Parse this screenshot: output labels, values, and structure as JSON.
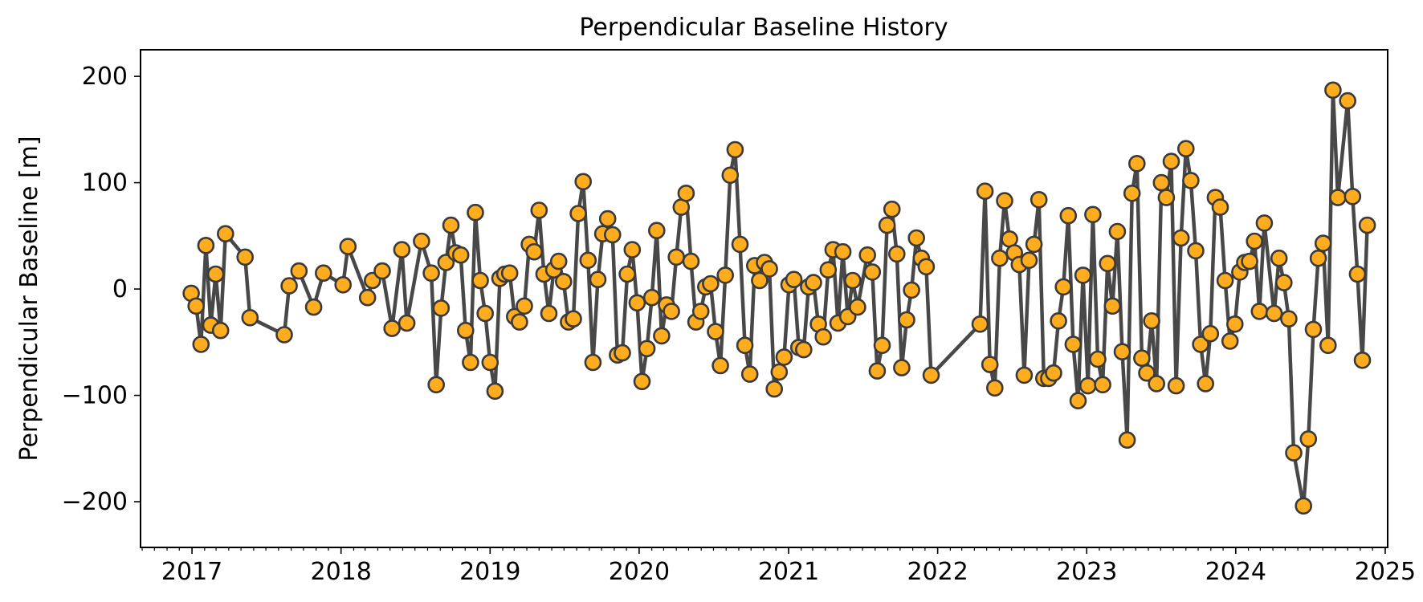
{
  "chart_data": {
    "type": "scatter",
    "title": "Perpendicular Baseline History",
    "xlabel": "",
    "ylabel": "Perpendicular Baseline [m]",
    "xlim": [
      "2016-08-28",
      "2025-01-07"
    ],
    "ylim": [
      -243,
      225
    ],
    "x_ticks": [
      "2017",
      "2018",
      "2019",
      "2020",
      "2021",
      "2022",
      "2023",
      "2024",
      "2025"
    ],
    "y_ticks": [
      200,
      100,
      0,
      -100,
      -200
    ],
    "y_tick_labels": [
      "200",
      "100",
      "0",
      "−100",
      "−200"
    ],
    "grid": false,
    "legend": false,
    "colors": {
      "marker_fill": "#ffad1f",
      "marker_edge": "#3a3a3a",
      "line": "#484848"
    },
    "series": [
      {
        "points": [
          [
            "2016-12-30",
            -4
          ],
          [
            "2017-01-11",
            -16
          ],
          [
            "2017-01-23",
            -52
          ],
          [
            "2017-02-04",
            41
          ],
          [
            "2017-02-16",
            -34
          ],
          [
            "2017-02-28",
            14
          ],
          [
            "2017-03-12",
            -39
          ],
          [
            "2017-03-24",
            52
          ],
          [
            "2017-05-11",
            30
          ],
          [
            "2017-05-23",
            -27
          ],
          [
            "2017-08-15",
            -43
          ],
          [
            "2017-08-27",
            3
          ],
          [
            "2017-09-20",
            17
          ],
          [
            "2017-10-26",
            -17
          ],
          [
            "2017-11-19",
            15
          ],
          [
            "2018-01-06",
            4
          ],
          [
            "2018-01-18",
            40
          ],
          [
            "2018-03-07",
            -8
          ],
          [
            "2018-03-19",
            8
          ],
          [
            "2018-04-12",
            17
          ],
          [
            "2018-05-06",
            -37
          ],
          [
            "2018-05-30",
            37
          ],
          [
            "2018-06-11",
            -32
          ],
          [
            "2018-07-17",
            45
          ],
          [
            "2018-08-10",
            15
          ],
          [
            "2018-08-22",
            -90
          ],
          [
            "2018-09-03",
            -18
          ],
          [
            "2018-09-15",
            25
          ],
          [
            "2018-09-27",
            60
          ],
          [
            "2018-10-09",
            34
          ],
          [
            "2018-10-21",
            32
          ],
          [
            "2018-11-02",
            -39
          ],
          [
            "2018-11-14",
            -69
          ],
          [
            "2018-11-26",
            72
          ],
          [
            "2018-12-08",
            8
          ],
          [
            "2018-12-20",
            -23
          ],
          [
            "2019-01-01",
            -69
          ],
          [
            "2019-01-13",
            -96
          ],
          [
            "2019-01-25",
            10
          ],
          [
            "2019-02-06",
            14
          ],
          [
            "2019-02-18",
            15
          ],
          [
            "2019-03-02",
            -26
          ],
          [
            "2019-03-14",
            -31
          ],
          [
            "2019-03-26",
            -16
          ],
          [
            "2019-04-07",
            42
          ],
          [
            "2019-04-19",
            35
          ],
          [
            "2019-05-01",
            74
          ],
          [
            "2019-05-13",
            14
          ],
          [
            "2019-05-25",
            -23
          ],
          [
            "2019-06-06",
            18
          ],
          [
            "2019-06-18",
            26
          ],
          [
            "2019-06-30",
            7
          ],
          [
            "2019-07-12",
            -31
          ],
          [
            "2019-07-24",
            -28
          ],
          [
            "2019-08-05",
            71
          ],
          [
            "2019-08-17",
            101
          ],
          [
            "2019-08-29",
            27
          ],
          [
            "2019-09-10",
            -69
          ],
          [
            "2019-09-22",
            9
          ],
          [
            "2019-10-04",
            52
          ],
          [
            "2019-10-16",
            66
          ],
          [
            "2019-10-28",
            51
          ],
          [
            "2019-11-09",
            -62
          ],
          [
            "2019-11-21",
            -60
          ],
          [
            "2019-12-03",
            14
          ],
          [
            "2019-12-15",
            37
          ],
          [
            "2019-12-27",
            -13
          ],
          [
            "2020-01-08",
            -87
          ],
          [
            "2020-01-20",
            -56
          ],
          [
            "2020-02-01",
            -8
          ],
          [
            "2020-02-13",
            55
          ],
          [
            "2020-02-25",
            -44
          ],
          [
            "2020-03-08",
            -15
          ],
          [
            "2020-03-20",
            -21
          ],
          [
            "2020-04-01",
            30
          ],
          [
            "2020-04-13",
            77
          ],
          [
            "2020-04-25",
            90
          ],
          [
            "2020-05-07",
            26
          ],
          [
            "2020-05-19",
            -31
          ],
          [
            "2020-05-31",
            -21
          ],
          [
            "2020-06-12",
            2
          ],
          [
            "2020-06-24",
            5
          ],
          [
            "2020-07-06",
            -40
          ],
          [
            "2020-07-18",
            -72
          ],
          [
            "2020-07-30",
            13
          ],
          [
            "2020-08-11",
            107
          ],
          [
            "2020-08-23",
            131
          ],
          [
            "2020-09-04",
            42
          ],
          [
            "2020-09-16",
            -53
          ],
          [
            "2020-09-28",
            -80
          ],
          [
            "2020-10-10",
            22
          ],
          [
            "2020-10-22",
            8
          ],
          [
            "2020-11-03",
            25
          ],
          [
            "2020-11-15",
            19
          ],
          [
            "2020-11-27",
            -94
          ],
          [
            "2020-12-09",
            -78
          ],
          [
            "2020-12-21",
            -64
          ],
          [
            "2021-01-02",
            4
          ],
          [
            "2021-01-14",
            9
          ],
          [
            "2021-01-26",
            -55
          ],
          [
            "2021-02-07",
            -57
          ],
          [
            "2021-02-19",
            2
          ],
          [
            "2021-03-03",
            6
          ],
          [
            "2021-03-15",
            -33
          ],
          [
            "2021-03-27",
            -45
          ],
          [
            "2021-04-08",
            18
          ],
          [
            "2021-04-20",
            37
          ],
          [
            "2021-05-02",
            -32
          ],
          [
            "2021-05-14",
            35
          ],
          [
            "2021-05-26",
            -26
          ],
          [
            "2021-06-07",
            8
          ],
          [
            "2021-06-19",
            -17
          ],
          [
            "2021-07-13",
            32
          ],
          [
            "2021-07-25",
            16
          ],
          [
            "2021-08-06",
            -77
          ],
          [
            "2021-08-18",
            -53
          ],
          [
            "2021-08-30",
            60
          ],
          [
            "2021-09-11",
            75
          ],
          [
            "2021-09-23",
            33
          ],
          [
            "2021-10-05",
            -74
          ],
          [
            "2021-10-17",
            -29
          ],
          [
            "2021-10-29",
            -1
          ],
          [
            "2021-11-10",
            48
          ],
          [
            "2021-11-22",
            29
          ],
          [
            "2021-12-04",
            21
          ],
          [
            "2021-12-16",
            -81
          ],
          [
            "2022-04-15",
            -33
          ],
          [
            "2022-04-27",
            92
          ],
          [
            "2022-05-09",
            -71
          ],
          [
            "2022-05-21",
            -93
          ],
          [
            "2022-06-02",
            29
          ],
          [
            "2022-06-14",
            83
          ],
          [
            "2022-06-26",
            47
          ],
          [
            "2022-07-08",
            34
          ],
          [
            "2022-07-20",
            23
          ],
          [
            "2022-08-01",
            -81
          ],
          [
            "2022-08-13",
            27
          ],
          [
            "2022-08-25",
            42
          ],
          [
            "2022-09-06",
            84
          ],
          [
            "2022-09-18",
            -84
          ],
          [
            "2022-09-30",
            -84
          ],
          [
            "2022-10-12",
            -79
          ],
          [
            "2022-10-24",
            -30
          ],
          [
            "2022-11-05",
            2
          ],
          [
            "2022-11-17",
            69
          ],
          [
            "2022-11-29",
            -52
          ],
          [
            "2022-12-11",
            -105
          ],
          [
            "2022-12-23",
            13
          ],
          [
            "2023-01-04",
            -91
          ],
          [
            "2023-01-16",
            70
          ],
          [
            "2023-01-28",
            -66
          ],
          [
            "2023-02-09",
            -90
          ],
          [
            "2023-02-21",
            24
          ],
          [
            "2023-03-05",
            -16
          ],
          [
            "2023-03-17",
            54
          ],
          [
            "2023-03-29",
            -59
          ],
          [
            "2023-04-10",
            -142
          ],
          [
            "2023-04-22",
            90
          ],
          [
            "2023-05-04",
            118
          ],
          [
            "2023-05-16",
            -65
          ],
          [
            "2023-05-28",
            -79
          ],
          [
            "2023-06-09",
            -30
          ],
          [
            "2023-06-21",
            -89
          ],
          [
            "2023-07-03",
            100
          ],
          [
            "2023-07-15",
            86
          ],
          [
            "2023-07-27",
            120
          ],
          [
            "2023-08-08",
            -91
          ],
          [
            "2023-08-20",
            48
          ],
          [
            "2023-09-01",
            132
          ],
          [
            "2023-09-13",
            102
          ],
          [
            "2023-09-25",
            36
          ],
          [
            "2023-10-07",
            -52
          ],
          [
            "2023-10-19",
            -89
          ],
          [
            "2023-10-31",
            -42
          ],
          [
            "2023-11-12",
            86
          ],
          [
            "2023-11-24",
            77
          ],
          [
            "2023-12-06",
            8
          ],
          [
            "2023-12-18",
            -49
          ],
          [
            "2023-12-30",
            -33
          ],
          [
            "2024-01-11",
            16
          ],
          [
            "2024-01-23",
            25
          ],
          [
            "2024-02-04",
            26
          ],
          [
            "2024-02-16",
            45
          ],
          [
            "2024-02-28",
            -21
          ],
          [
            "2024-03-11",
            62
          ],
          [
            "2024-04-04",
            -23
          ],
          [
            "2024-04-16",
            29
          ],
          [
            "2024-04-28",
            6
          ],
          [
            "2024-05-10",
            -28
          ],
          [
            "2024-05-22",
            -154
          ],
          [
            "2024-06-15",
            -204
          ],
          [
            "2024-06-27",
            -141
          ],
          [
            "2024-07-09",
            -38
          ],
          [
            "2024-07-21",
            29
          ],
          [
            "2024-08-02",
            43
          ],
          [
            "2024-08-14",
            -53
          ],
          [
            "2024-08-26",
            187
          ],
          [
            "2024-09-07",
            86
          ],
          [
            "2024-10-01",
            177
          ],
          [
            "2024-10-13",
            87
          ],
          [
            "2024-10-25",
            14
          ],
          [
            "2024-11-06",
            -67
          ],
          [
            "2024-11-18",
            60
          ]
        ]
      }
    ]
  }
}
